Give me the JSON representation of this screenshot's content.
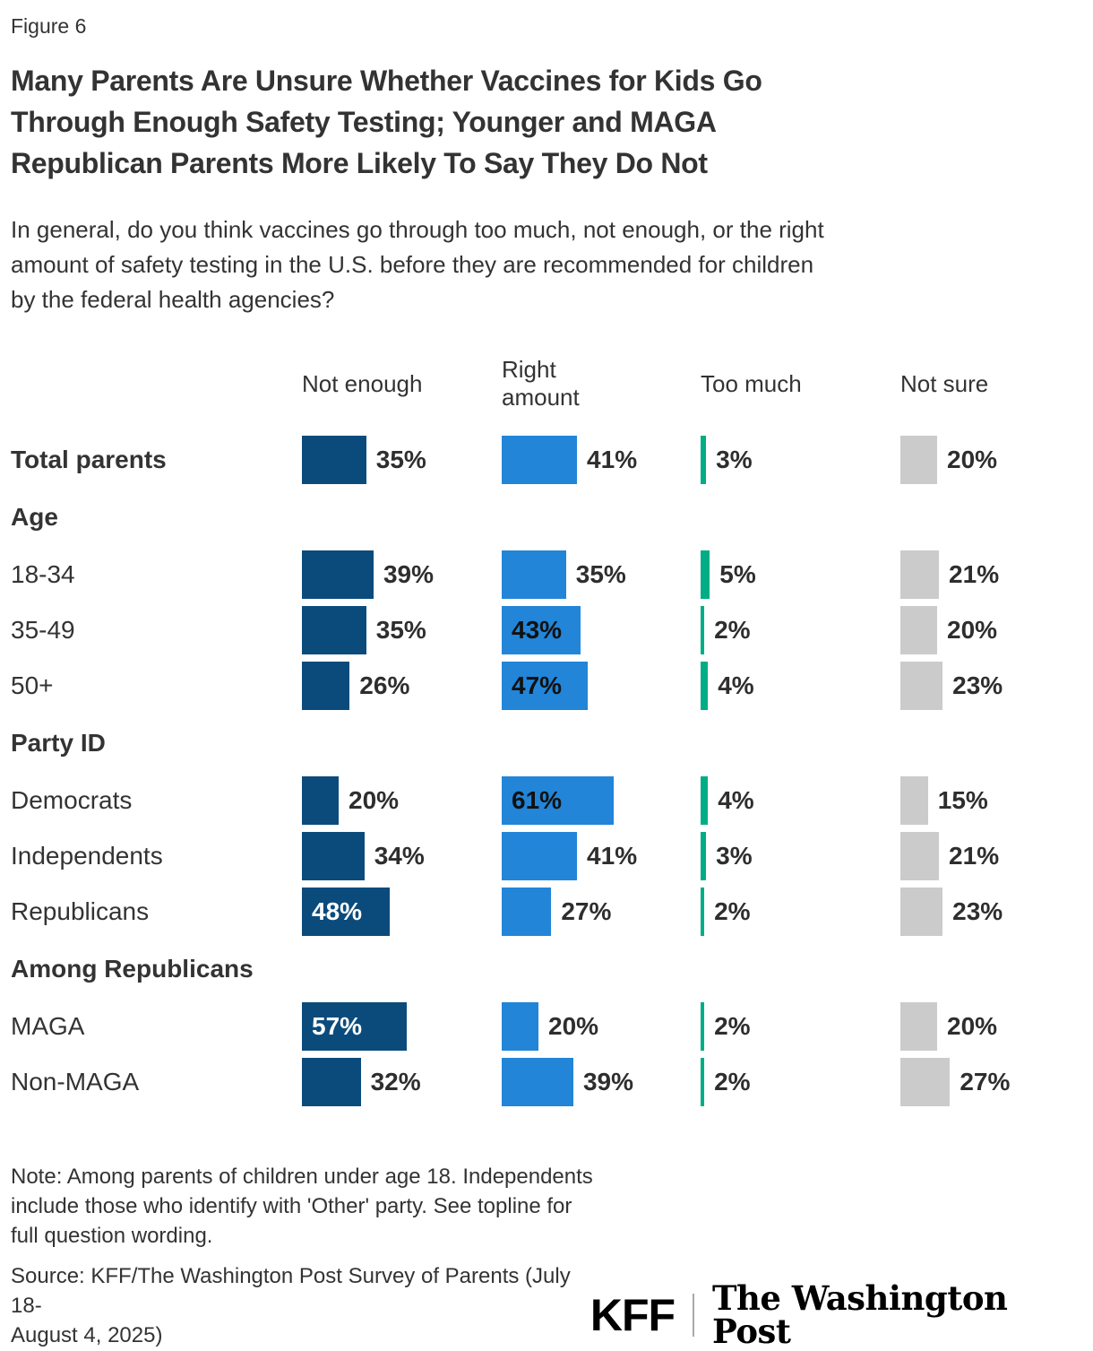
{
  "figure_label": "Figure 6",
  "title_lines": [
    "Many Parents Are Unsure Whether Vaccines for Kids Go",
    "Through Enough Safety Testing; Younger and MAGA",
    "Republican Parents More Likely To Say They Do Not"
  ],
  "subtitle_lines": [
    "In general, do you think vaccines go through too much, not enough, or the right",
    "amount of safety testing in the U.S. before they are recommended for children",
    "by the federal health agencies?"
  ],
  "note_lines": [
    "Note: Among parents of children under age 18. Independents",
    "include those who identify with 'Other' party. See topline for",
    "full question wording."
  ],
  "source_lines": [
    "Source: KFF/The Washington Post Survey of Parents (July 18-",
    "August 4, 2025)"
  ],
  "logos": {
    "kff": "KFF",
    "wapo": "The Washington Post"
  },
  "chart_data": {
    "type": "bar",
    "orientation": "horizontal",
    "unit": "%",
    "columns": [
      "Not enough",
      "Right amount",
      "Too much",
      "Not sure"
    ],
    "colors": {
      "bars": [
        "#0B4B7C",
        "#2285D8",
        "#00AD84",
        "#CBCBCB"
      ],
      "inside_label": [
        "#ffffff",
        "#111111",
        "#111111",
        "#111111"
      ],
      "outside_label": "#2e2e2e"
    },
    "axis_range": [
      0,
      100
    ],
    "groups": [
      {
        "header": null,
        "rows": [
          {
            "label": "Total parents",
            "bold": true,
            "values": [
              35,
              41,
              3,
              20
            ],
            "inside": [
              false,
              false,
              false,
              false
            ]
          }
        ]
      },
      {
        "header": "Age",
        "rows": [
          {
            "label": "18-34",
            "bold": false,
            "values": [
              39,
              35,
              5,
              21
            ],
            "inside": [
              false,
              false,
              false,
              false
            ]
          },
          {
            "label": "35-49",
            "bold": false,
            "values": [
              35,
              43,
              2,
              20
            ],
            "inside": [
              false,
              true,
              false,
              false
            ]
          },
          {
            "label": "50+",
            "bold": false,
            "values": [
              26,
              47,
              4,
              23
            ],
            "inside": [
              false,
              true,
              false,
              false
            ]
          }
        ]
      },
      {
        "header": "Party ID",
        "rows": [
          {
            "label": "Democrats",
            "bold": false,
            "values": [
              20,
              61,
              4,
              15
            ],
            "inside": [
              false,
              true,
              false,
              false
            ]
          },
          {
            "label": "Independents",
            "bold": false,
            "values": [
              34,
              41,
              3,
              21
            ],
            "inside": [
              false,
              false,
              false,
              false
            ]
          },
          {
            "label": "Republicans",
            "bold": false,
            "values": [
              48,
              27,
              2,
              23
            ],
            "inside": [
              true,
              false,
              false,
              false
            ]
          }
        ]
      },
      {
        "header": "Among Republicans",
        "rows": [
          {
            "label": "MAGA",
            "bold": false,
            "values": [
              57,
              20,
              2,
              20
            ],
            "inside": [
              true,
              false,
              false,
              false
            ]
          },
          {
            "label": "Non-MAGA",
            "bold": false,
            "values": [
              32,
              39,
              2,
              27
            ],
            "inside": [
              false,
              false,
              false,
              false
            ]
          }
        ]
      }
    ]
  }
}
